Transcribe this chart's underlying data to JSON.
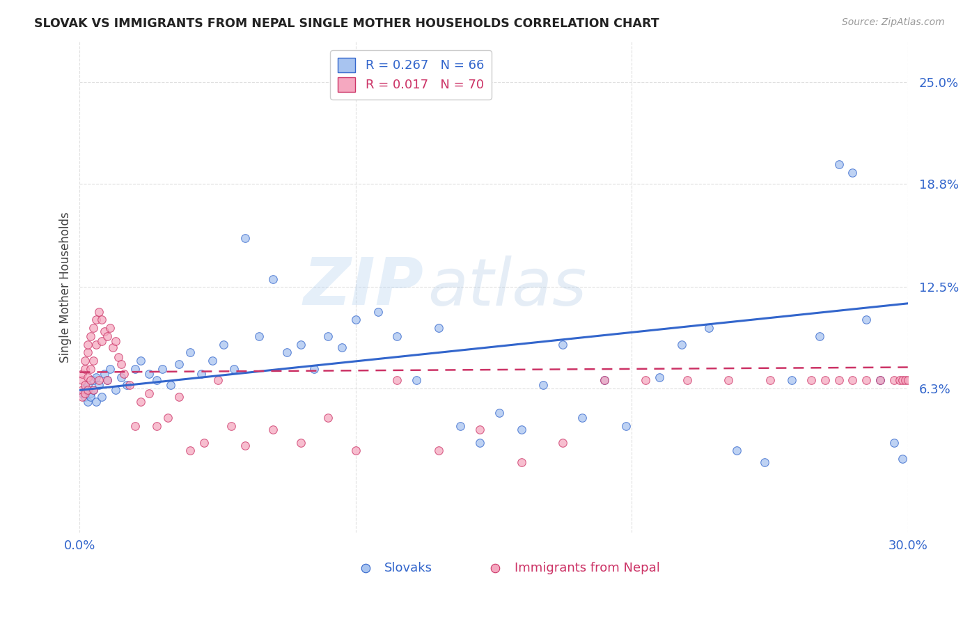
{
  "title": "SLOVAK VS IMMIGRANTS FROM NEPAL SINGLE MOTHER HOUSEHOLDS CORRELATION CHART",
  "source": "Source: ZipAtlas.com",
  "ylabel": "Single Mother Households",
  "ytick_labels": [
    "25.0%",
    "18.8%",
    "12.5%",
    "6.3%"
  ],
  "ytick_values": [
    0.25,
    0.188,
    0.125,
    0.063
  ],
  "xlim": [
    0.0,
    0.3
  ],
  "ylim": [
    -0.025,
    0.275
  ],
  "legend_r1": "R = 0.267",
  "legend_n1": "N = 66",
  "legend_r2": "R = 0.017",
  "legend_n2": "N = 70",
  "color_blue": "#a8c4f0",
  "color_pink": "#f5a8c0",
  "line_blue": "#3366cc",
  "line_pink": "#cc3366",
  "watermark_zip": "ZIP",
  "watermark_atlas": "atlas",
  "background": "#ffffff",
  "grid_color": "#e0e0e0",
  "slovak_x": [
    0.001,
    0.002,
    0.002,
    0.003,
    0.003,
    0.004,
    0.004,
    0.005,
    0.005,
    0.006,
    0.006,
    0.007,
    0.008,
    0.009,
    0.01,
    0.011,
    0.013,
    0.015,
    0.017,
    0.02,
    0.022,
    0.025,
    0.028,
    0.03,
    0.033,
    0.036,
    0.04,
    0.044,
    0.048,
    0.052,
    0.056,
    0.06,
    0.065,
    0.07,
    0.075,
    0.08,
    0.085,
    0.09,
    0.095,
    0.1,
    0.108,
    0.115,
    0.122,
    0.13,
    0.138,
    0.145,
    0.152,
    0.16,
    0.168,
    0.175,
    0.182,
    0.19,
    0.198,
    0.21,
    0.218,
    0.228,
    0.238,
    0.248,
    0.258,
    0.268,
    0.275,
    0.28,
    0.285,
    0.29,
    0.295,
    0.298
  ],
  "slovak_y": [
    0.06,
    0.058,
    0.063,
    0.055,
    0.065,
    0.06,
    0.058,
    0.068,
    0.062,
    0.055,
    0.07,
    0.065,
    0.058,
    0.072,
    0.068,
    0.075,
    0.062,
    0.07,
    0.065,
    0.075,
    0.08,
    0.072,
    0.068,
    0.075,
    0.065,
    0.078,
    0.085,
    0.072,
    0.08,
    0.09,
    0.075,
    0.155,
    0.095,
    0.13,
    0.085,
    0.09,
    0.075,
    0.095,
    0.088,
    0.105,
    0.11,
    0.095,
    0.068,
    0.1,
    0.04,
    0.03,
    0.048,
    0.038,
    0.065,
    0.09,
    0.045,
    0.068,
    0.04,
    0.07,
    0.09,
    0.1,
    0.025,
    0.018,
    0.068,
    0.095,
    0.2,
    0.195,
    0.105,
    0.068,
    0.03,
    0.02
  ],
  "nepal_x": [
    0.001,
    0.001,
    0.001,
    0.001,
    0.002,
    0.002,
    0.002,
    0.002,
    0.003,
    0.003,
    0.003,
    0.003,
    0.004,
    0.004,
    0.004,
    0.005,
    0.005,
    0.005,
    0.006,
    0.006,
    0.007,
    0.007,
    0.008,
    0.008,
    0.009,
    0.01,
    0.01,
    0.011,
    0.012,
    0.013,
    0.014,
    0.015,
    0.016,
    0.018,
    0.02,
    0.022,
    0.025,
    0.028,
    0.032,
    0.036,
    0.04,
    0.045,
    0.05,
    0.055,
    0.06,
    0.07,
    0.08,
    0.09,
    0.1,
    0.115,
    0.13,
    0.145,
    0.16,
    0.175,
    0.19,
    0.205,
    0.22,
    0.235,
    0.25,
    0.265,
    0.27,
    0.275,
    0.28,
    0.285,
    0.29,
    0.295,
    0.297,
    0.298,
    0.299,
    0.3
  ],
  "nepal_y": [
    0.068,
    0.062,
    0.072,
    0.058,
    0.075,
    0.065,
    0.08,
    0.06,
    0.085,
    0.07,
    0.09,
    0.062,
    0.095,
    0.075,
    0.068,
    0.1,
    0.08,
    0.062,
    0.105,
    0.09,
    0.11,
    0.068,
    0.105,
    0.092,
    0.098,
    0.095,
    0.068,
    0.1,
    0.088,
    0.092,
    0.082,
    0.078,
    0.072,
    0.065,
    0.04,
    0.055,
    0.06,
    0.04,
    0.045,
    0.058,
    0.025,
    0.03,
    0.068,
    0.04,
    0.028,
    0.038,
    0.03,
    0.045,
    0.025,
    0.068,
    0.025,
    0.038,
    0.018,
    0.03,
    0.068,
    0.068,
    0.068,
    0.068,
    0.068,
    0.068,
    0.068,
    0.068,
    0.068,
    0.068,
    0.068,
    0.068,
    0.068,
    0.068,
    0.068,
    0.068
  ]
}
